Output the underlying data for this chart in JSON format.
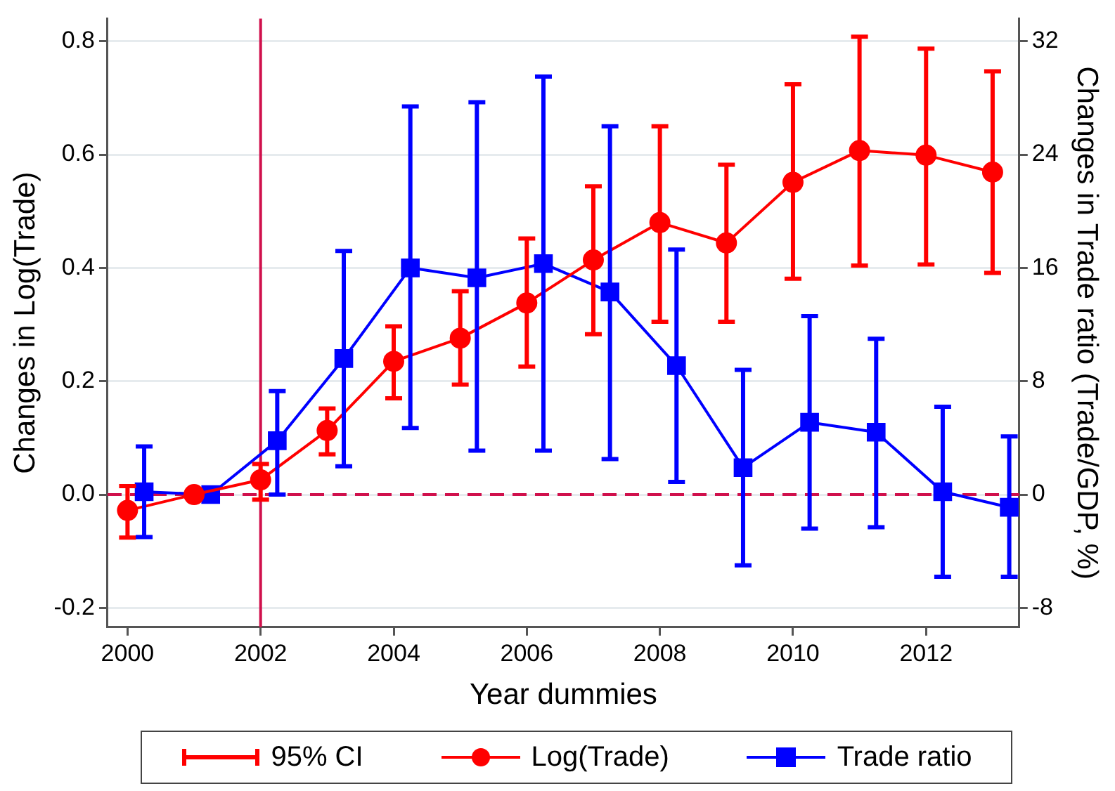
{
  "chart_data": {
    "type": "line",
    "xlabel": "Year dummies",
    "ylabel": "Changes in Log(Trade)",
    "y2label": "Changes in Trade ratio (Trade/GDP, %)",
    "xlim": [
      1999.7,
      2013.4
    ],
    "xticks": [
      2000,
      2002,
      2004,
      2006,
      2008,
      2010,
      2012
    ],
    "ylim": [
      -0.234,
      0.84
    ],
    "yticks": [
      -0.2,
      {
        "value": 0,
        "label": "0.0"
      },
      0.2,
      0.4,
      0.6,
      0.8
    ],
    "y2lim": [
      -9.36,
      33.6
    ],
    "y2ticks": [
      -8,
      0,
      8,
      16,
      24,
      32
    ],
    "grid": "y",
    "legend": "bottom",
    "line_style": "solid",
    "annotations": [
      "95% CI"
    ],
    "series": [
      {
        "name": "Log(Trade)",
        "color": "#ff0000",
        "marker": "circle",
        "x": [
          2000,
          2001,
          2002,
          2003,
          2004,
          2005,
          2006,
          2007,
          2008,
          2009,
          2010,
          2011,
          2012,
          2013
        ],
        "values": [
          -0.028,
          0,
          0.026,
          0.113,
          0.235,
          0.276,
          0.338,
          0.414,
          0.48,
          0.444,
          0.551,
          0.607,
          0.599,
          0.569
        ],
        "errors": [
          [
            -0.076,
            0.015
          ],
          null,
          [
            -0.009,
            0.054
          ],
          [
            0.071,
            0.152
          ],
          [
            0.17,
            0.297
          ],
          [
            0.194,
            0.359
          ],
          [
            0.226,
            0.452
          ],
          [
            0.283,
            0.544
          ],
          [
            0.305,
            0.65
          ],
          [
            0.305,
            0.582
          ],
          [
            0.381,
            0.724
          ],
          [
            0.404,
            0.808
          ],
          [
            0.406,
            0.787
          ],
          [
            0.391,
            0.747
          ]
        ]
      },
      {
        "name": "Trade ratio",
        "color": "#0000ff",
        "marker": "square",
        "axis": "y2",
        "x": [
          2000.25,
          2001.25,
          2002.25,
          2003.25,
          2004.25,
          2005.25,
          2006.25,
          2007.25,
          2008.25,
          2009.25,
          2010.25,
          2011.25,
          2012.25,
          2013.25
        ],
        "values": [
          0.2,
          0,
          3.8,
          9.6,
          16.0,
          15.3,
          16.3,
          14.3,
          9.1,
          1.9,
          5.1,
          4.4,
          0.2,
          -0.9
        ],
        "errors": [
          [
            -3.0,
            3.4
          ],
          null,
          [
            0,
            7.3
          ],
          [
            2.0,
            17.2
          ],
          [
            4.7,
            27.4
          ],
          [
            3.1,
            27.7
          ],
          [
            3.1,
            29.5
          ],
          [
            2.5,
            26.0
          ],
          [
            0.9,
            17.3
          ],
          [
            -5.0,
            8.8
          ],
          [
            -2.4,
            12.6
          ],
          [
            -2.3,
            11.0
          ],
          [
            -5.8,
            6.2
          ],
          [
            -5.8,
            4.1
          ]
        ]
      }
    ],
    "ref_lines": [
      {
        "axis": "x",
        "value": 2002,
        "color": "#d0104c",
        "line_style": "solid"
      },
      {
        "axis": "y",
        "value": 0,
        "color": "#d0104c",
        "line_style": "dashed"
      }
    ]
  }
}
